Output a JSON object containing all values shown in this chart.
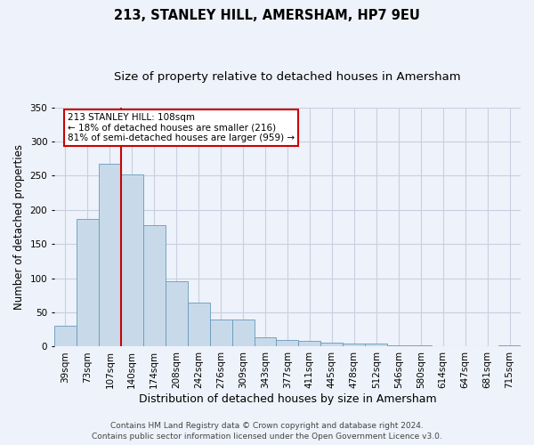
{
  "title": "213, STANLEY HILL, AMERSHAM, HP7 9EU",
  "subtitle": "Size of property relative to detached houses in Amersham",
  "xlabel": "Distribution of detached houses by size in Amersham",
  "ylabel": "Number of detached properties",
  "bar_labels": [
    "39sqm",
    "73sqm",
    "107sqm",
    "140sqm",
    "174sqm",
    "208sqm",
    "242sqm",
    "276sqm",
    "309sqm",
    "343sqm",
    "377sqm",
    "411sqm",
    "445sqm",
    "478sqm",
    "512sqm",
    "546sqm",
    "580sqm",
    "614sqm",
    "647sqm",
    "681sqm",
    "715sqm"
  ],
  "bar_values": [
    30,
    187,
    267,
    252,
    178,
    95,
    65,
    40,
    39,
    14,
    10,
    8,
    6,
    4,
    4,
    2,
    2,
    1,
    0,
    0,
    2
  ],
  "bar_color": "#c8daea",
  "bar_edge_color": "#6699bb",
  "ylim": [
    0,
    350
  ],
  "yticks": [
    0,
    50,
    100,
    150,
    200,
    250,
    300,
    350
  ],
  "vline_x": 2.5,
  "vline_color": "#cc0000",
  "annotation_title": "213 STANLEY HILL: 108sqm",
  "annotation_line1": "← 18% of detached houses are smaller (216)",
  "annotation_line2": "81% of semi-detached houses are larger (959) →",
  "annotation_box_color": "#ffffff",
  "annotation_border_color": "#cc0000",
  "footer1": "Contains HM Land Registry data © Crown copyright and database right 2024.",
  "footer2": "Contains public sector information licensed under the Open Government Licence v3.0.",
  "background_color": "#eef2fa",
  "grid_color": "#c8d0e0",
  "title_fontsize": 10.5,
  "subtitle_fontsize": 9.5,
  "xlabel_fontsize": 9,
  "ylabel_fontsize": 8.5,
  "tick_fontsize": 7.5,
  "annotation_fontsize": 7.5,
  "footer_fontsize": 6.5
}
